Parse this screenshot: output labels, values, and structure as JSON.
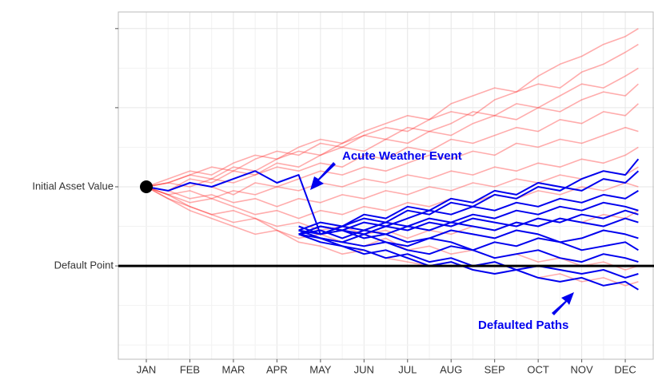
{
  "chart_data": {
    "type": "line",
    "x": [
      1,
      1.5,
      2,
      2.5,
      3,
      3.5,
      4,
      4.5,
      5,
      5.5,
      6,
      6.5,
      7,
      7.5,
      8,
      8.5,
      9,
      9.5,
      10,
      10.5,
      11,
      11.5,
      12,
      12.3
    ],
    "xlim": [
      0.357,
      12.66
    ],
    "xticks": [
      {
        "value": 1,
        "label": "JAN"
      },
      {
        "value": 2,
        "label": "FEB"
      },
      {
        "value": 3,
        "label": "MAR"
      },
      {
        "value": 4,
        "label": "APR"
      },
      {
        "value": 5,
        "label": "MAY"
      },
      {
        "value": 6,
        "label": "JUN"
      },
      {
        "value": 7,
        "label": "JUL"
      },
      {
        "value": 8,
        "label": "AUG"
      },
      {
        "value": 9,
        "label": "SEP"
      },
      {
        "value": 10,
        "label": "OCT"
      },
      {
        "value": 11,
        "label": "NOV"
      },
      {
        "value": 12,
        "label": "DEC"
      }
    ],
    "ylim": [
      56.4,
      144.2
    ],
    "yticks": [
      {
        "value": 100,
        "label": "Initial Asset Value"
      },
      {
        "value": 80,
        "label": "Default Point"
      }
    ],
    "yticks_unlabeled": [
      120,
      140
    ],
    "ygrid": [
      60,
      70,
      90,
      110,
      130
    ],
    "grid": true,
    "hline": 80,
    "start_marker": {
      "x": 1,
      "y": 100
    },
    "series": [
      {
        "color": "#ff3030",
        "values": [
          100,
          102,
          104,
          103,
          106,
          108,
          107,
          110,
          112,
          111,
          114,
          116,
          118,
          117,
          121,
          123,
          125,
          124,
          128,
          131,
          133,
          136,
          138,
          140
        ]
      },
      {
        "color": "#ff3030",
        "values": [
          100,
          101,
          103,
          105,
          104,
          107,
          109,
          108,
          111,
          110,
          113,
          115,
          114,
          117,
          119,
          118,
          122,
          124,
          126,
          125,
          129,
          131,
          134,
          136
        ]
      },
      {
        "color": "#ff3030",
        "values": [
          100,
          99,
          102,
          101,
          104,
          103,
          106,
          105,
          108,
          110,
          109,
          112,
          111,
          114,
          113,
          116,
          118,
          117,
          120,
          119,
          122,
          124,
          123,
          126
        ]
      },
      {
        "color": "#ff3030",
        "values": [
          100,
          101,
          100,
          102,
          101,
          103,
          105,
          104,
          106,
          105,
          108,
          107,
          110,
          109,
          112,
          111,
          113,
          115,
          114,
          117,
          116,
          119,
          118,
          121
        ]
      },
      {
        "color": "#ff3030",
        "values": [
          100,
          99,
          101,
          100,
          98,
          101,
          100,
          102,
          104,
          103,
          105,
          104,
          106,
          108,
          107,
          109,
          108,
          111,
          110,
          112,
          111,
          113,
          115,
          114
        ]
      },
      {
        "color": "#ff3030",
        "values": [
          100,
          98,
          99,
          97,
          99,
          98,
          100,
          99,
          101,
          100,
          102,
          101,
          103,
          102,
          104,
          103,
          105,
          104,
          106,
          105,
          107,
          106,
          108,
          110
        ]
      },
      {
        "color": "#ff3030",
        "values": [
          100,
          99,
          97,
          98,
          96,
          97,
          95,
          97,
          96,
          98,
          97,
          99,
          98,
          100,
          99,
          101,
          100,
          102,
          101,
          103,
          102,
          104,
          103,
          105
        ]
      },
      {
        "color": "#ff3030",
        "values": [
          100,
          98,
          96,
          97,
          95,
          93,
          94,
          92,
          94,
          93,
          95,
          94,
          96,
          95,
          97,
          96,
          98,
          97,
          99,
          98,
          100,
          99,
          101,
          100
        ]
      },
      {
        "color": "#ff3030",
        "values": [
          100,
          97,
          95,
          93,
          94,
          92,
          90,
          91,
          89,
          90,
          88,
          89,
          87,
          89,
          88,
          90,
          89,
          91,
          90,
          92,
          91,
          93,
          92,
          94
        ]
      },
      {
        "color": "#ff3030",
        "values": [
          100,
          98,
          95,
          93,
          91,
          92,
          89,
          87,
          88,
          86,
          85,
          87,
          84,
          85,
          83,
          84,
          82,
          83,
          81,
          82,
          80,
          81,
          79,
          80
        ]
      },
      {
        "color": "#ff3030",
        "values": [
          100,
          97,
          94,
          92,
          90,
          88,
          89,
          86,
          85,
          83,
          84,
          82,
          81,
          80,
          81,
          79,
          78,
          79,
          77,
          78,
          76,
          77,
          75,
          76
        ]
      },
      {
        "color": "#ff3030",
        "values": [
          100,
          101,
          103,
          102,
          105,
          104,
          107,
          109,
          108,
          111,
          113,
          112,
          115,
          114,
          116,
          119,
          118,
          121,
          120,
          123,
          126,
          125,
          128,
          130
        ]
      },
      {
        "color": "#0000ee",
        "values": [
          100,
          99,
          101,
          100,
          102,
          104,
          101,
          103,
          88,
          90,
          92,
          91,
          94,
          93,
          96,
          95,
          98,
          97,
          100,
          99,
          102,
          104,
          103,
          107
        ]
      },
      {
        "color": "#0000ee",
        "values": [
          null,
          null,
          null,
          null,
          null,
          null,
          null,
          89,
          91,
          90,
          93,
          92,
          95,
          94,
          97,
          96,
          99,
          98,
          101,
          100,
          99,
          102,
          101,
          104
        ]
      },
      {
        "color": "#0000ee",
        "values": [
          null,
          null,
          null,
          null,
          null,
          null,
          null,
          88,
          90,
          89,
          91,
          90,
          92,
          94,
          93,
          95,
          94,
          96,
          95,
          97,
          96,
          98,
          97,
          99
        ]
      },
      {
        "color": "#0000ee",
        "values": [
          null,
          null,
          null,
          null,
          null,
          null,
          null,
          89,
          88,
          90,
          89,
          91,
          90,
          92,
          91,
          93,
          92,
          94,
          93,
          95,
          94,
          96,
          95,
          94
        ]
      },
      {
        "color": "#0000ee",
        "values": [
          null,
          null,
          null,
          null,
          null,
          null,
          null,
          88,
          89,
          87,
          89,
          88,
          90,
          89,
          91,
          90,
          89,
          91,
          90,
          92,
          91,
          90,
          92,
          91
        ]
      },
      {
        "color": "#0000ee",
        "values": [
          null,
          null,
          null,
          null,
          null,
          null,
          null,
          90,
          88,
          89,
          87,
          88,
          86,
          87,
          89,
          88,
          87,
          89,
          88,
          86,
          87,
          89,
          88,
          87
        ]
      },
      {
        "color": "#0000ee",
        "values": [
          null,
          null,
          null,
          null,
          null,
          null,
          null,
          88,
          87,
          86,
          88,
          86,
          85,
          87,
          86,
          84,
          86,
          85,
          87,
          86,
          84,
          85,
          86,
          84
        ]
      },
      {
        "color": "#0000ee",
        "values": [
          null,
          null,
          null,
          null,
          null,
          null,
          null,
          89,
          87,
          86,
          85,
          86,
          84,
          83,
          85,
          84,
          82,
          83,
          84,
          82,
          81,
          83,
          82,
          81
        ]
      },
      {
        "color": "#0000ee",
        "values": [
          null,
          null,
          null,
          null,
          null,
          null,
          null,
          88,
          86,
          85,
          84,
          82,
          83,
          81,
          82,
          80,
          81,
          79,
          80,
          79,
          78,
          79,
          77,
          78
        ]
      },
      {
        "color": "#0000ee",
        "values": [
          null,
          null,
          null,
          null,
          null,
          null,
          null,
          89,
          87,
          85,
          83,
          84,
          82,
          80,
          81,
          79,
          78,
          79,
          77,
          76,
          77,
          75,
          76,
          74
        ]
      },
      {
        "color": "#0000ee",
        "values": [
          null,
          null,
          null,
          null,
          null,
          null,
          null,
          88,
          90,
          89,
          88,
          90,
          89,
          91,
          90,
          92,
          91,
          90,
          92,
          91,
          93,
          92,
          94,
          93
        ]
      }
    ],
    "annotations": [
      {
        "text": "Acute Weather Event"
      },
      {
        "text": "Defaulted Paths"
      }
    ]
  }
}
